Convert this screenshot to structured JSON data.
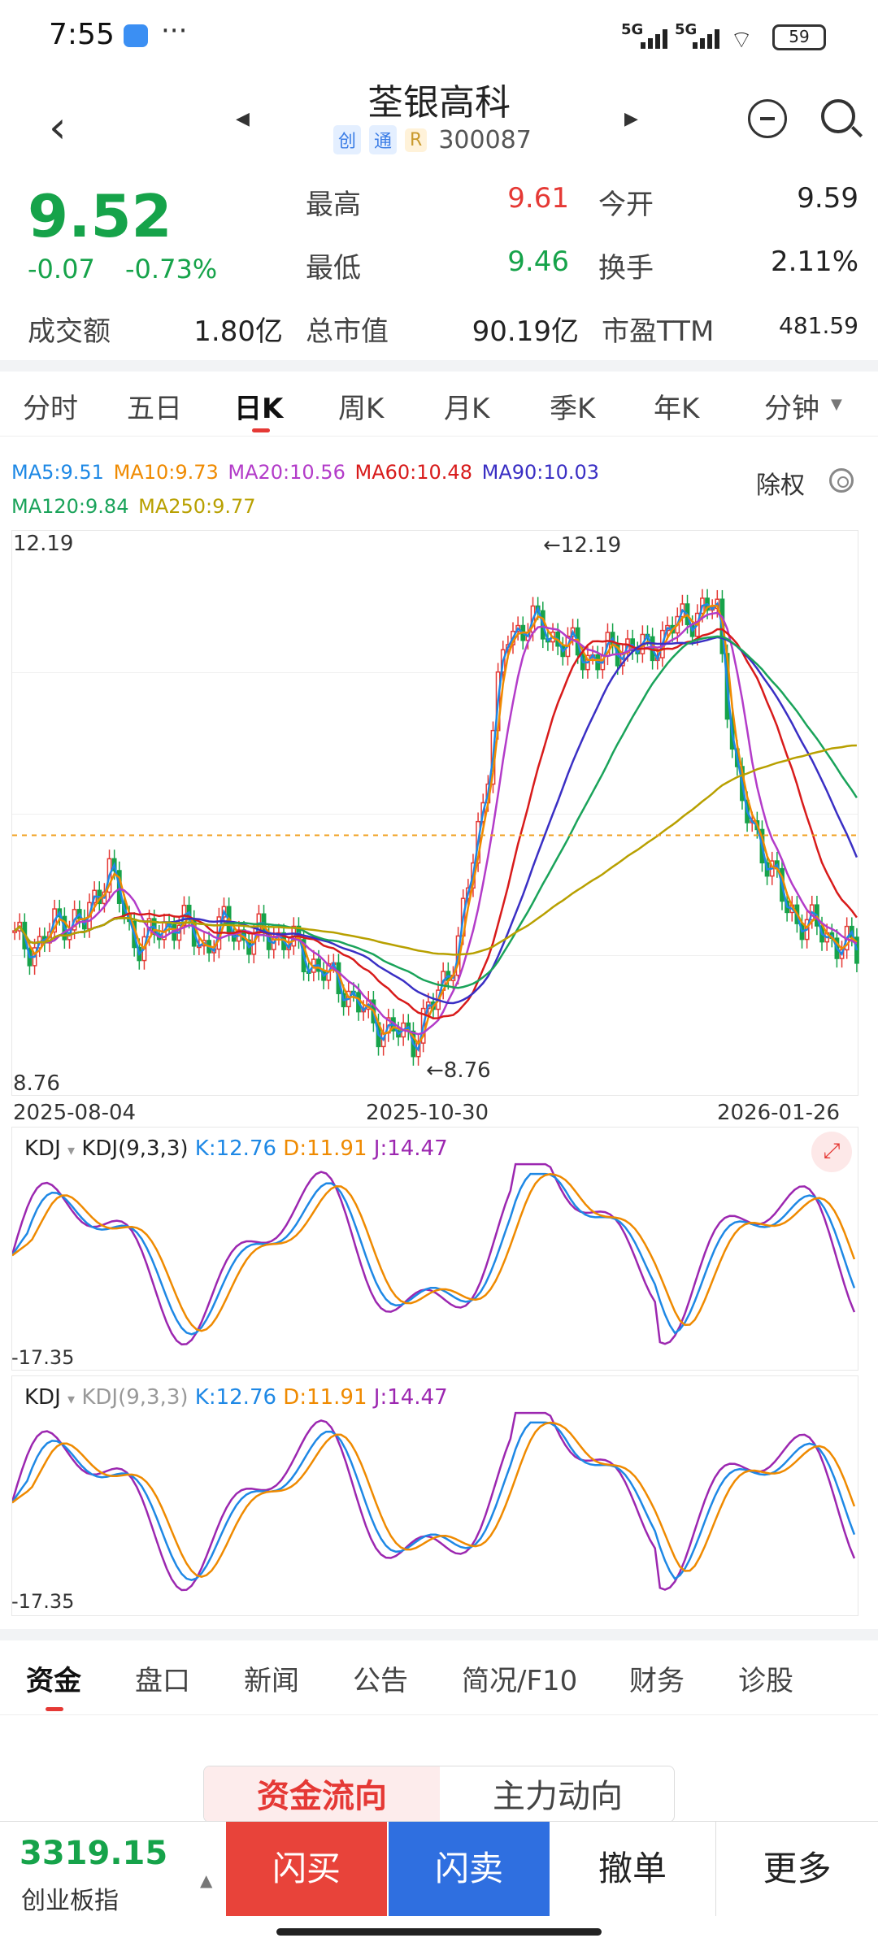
{
  "status": {
    "time": "7:55",
    "net1": "5G",
    "net2": "5G",
    "battery": "59"
  },
  "header": {
    "name": "荃银高科",
    "badges": [
      "创",
      "通",
      "R"
    ],
    "code": "300087"
  },
  "quote": {
    "price": "9.52",
    "change": "-0.07",
    "change_pct": "-0.73%",
    "rows": [
      {
        "l1": "最高",
        "v1": "9.61",
        "l2": "今开",
        "v2": "9.59"
      },
      {
        "l1": "最低",
        "v1": "9.46",
        "l2": "换手",
        "v2": "2.11%"
      }
    ],
    "row3": {
      "l0": "成交额",
      "v0": "1.80亿",
      "l1": "总市值",
      "v1": "90.19亿",
      "l2": "市盈TTM",
      "v2": "481.59"
    }
  },
  "periods": [
    "分时",
    "五日",
    "日K",
    "周K",
    "月K",
    "季K",
    "年K",
    "分钟"
  ],
  "ma_legend": {
    "line1": [
      {
        "text": "MA5:9.51",
        "color": "#1e88e5"
      },
      {
        "text": "MA10:9.73",
        "color": "#ef8a00"
      },
      {
        "text": "MA20:10.56",
        "color": "#b33cc9"
      },
      {
        "text": "MA60:10.48",
        "color": "#d81b1b"
      },
      {
        "text": "MA90:10.03",
        "color": "#3a2fc4"
      }
    ],
    "line2": [
      {
        "text": "MA120:9.84",
        "color": "#1aa35a"
      },
      {
        "text": "MA250:9.77",
        "color": "#b8a000"
      }
    ],
    "chuquan": "除权"
  },
  "kchart": {
    "high_label": "12.19",
    "low_label": "8.76",
    "high_marker": "←12.19",
    "low_marker": "←8.76",
    "dates": [
      "2025-08-04",
      "2025-10-30",
      "2026-01-26"
    ]
  },
  "kdj": {
    "name": "KDJ",
    "params": "KDJ(9,3,3)",
    "k": "K:12.76",
    "d": "D:11.91",
    "j": "J:14.47",
    "min_label": "-17.35"
  },
  "chart_data": {
    "type": "candlestick",
    "ylim": [
      8.76,
      12.19
    ],
    "x_ticks": [
      "2025-08-04",
      "2025-10-30",
      "2026-01-26"
    ],
    "close_path": [
      9.6,
      9.55,
      9.75,
      9.7,
      10.1,
      9.6,
      9.62,
      9.75,
      9.55,
      9.7,
      9.6,
      9.65,
      9.55,
      9.4,
      9.3,
      9.1,
      9.0,
      8.95,
      9.2,
      9.6,
      10.5,
      11.6,
      11.7,
      11.6,
      11.5,
      11.45,
      11.55,
      11.5,
      11.65,
      11.75,
      11.8,
      10.5,
      10.2,
      9.8,
      9.7,
      9.6,
      9.52
    ],
    "markers": {
      "high": 12.19,
      "low": 8.76,
      "last": 9.52
    }
  },
  "bottom_tabs": [
    "资金",
    "盘口",
    "新闻",
    "公告",
    "简况/F10",
    "财务",
    "诊股"
  ],
  "flow_tabs": [
    "资金流向",
    "主力动向"
  ],
  "trade": {
    "index_value": "3319.15",
    "index_name": "创业板指",
    "buy": "闪买",
    "sell": "闪卖",
    "cancel": "撤单",
    "more": "更多"
  }
}
